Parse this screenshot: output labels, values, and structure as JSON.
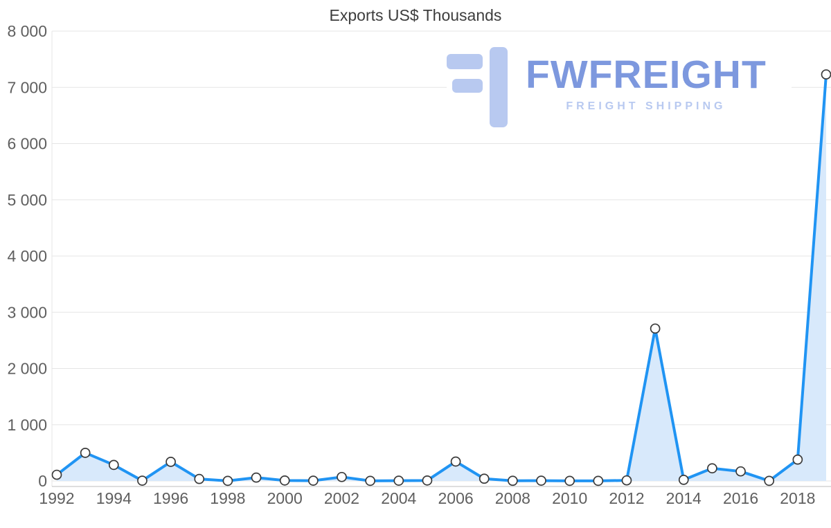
{
  "chart_data": {
    "type": "line",
    "title": "Exports US$ Thousands",
    "xlabel": "",
    "ylabel": "",
    "x": [
      1992,
      1993,
      1994,
      1995,
      1996,
      1997,
      1998,
      1999,
      2000,
      2001,
      2002,
      2003,
      2004,
      2005,
      2006,
      2007,
      2008,
      2009,
      2010,
      2011,
      2012,
      2013,
      2014,
      2015,
      2016,
      2017,
      2018,
      2019
    ],
    "values": [
      110,
      500,
      285,
      5,
      340,
      35,
      2,
      60,
      8,
      5,
      70,
      2,
      5,
      8,
      345,
      40,
      3,
      5,
      2,
      2,
      10,
      2710,
      20,
      225,
      170,
      2,
      380,
      7230
    ],
    "ylim": [
      0,
      8000
    ],
    "ytick_values": [
      0,
      1000,
      2000,
      3000,
      4000,
      5000,
      6000,
      7000,
      8000
    ],
    "ytick_labels": [
      "0",
      "1 000",
      "2 000",
      "3 000",
      "4 000",
      "5 000",
      "6 000",
      "7 000",
      "8 000"
    ],
    "xtick_values": [
      1992,
      1994,
      1996,
      1998,
      2000,
      2002,
      2004,
      2006,
      2008,
      2010,
      2012,
      2014,
      2016,
      2018
    ],
    "grid": true,
    "legend": "none",
    "marker": "circle",
    "colors": {
      "line": "#2094f3",
      "fill": "#d8e9fb",
      "marker_fill": "#ffffff",
      "marker_stroke": "#3a3a3a",
      "grid": "#e5e5e5",
      "axis": "#bdbdbd",
      "tick_text": "#5f5f5f",
      "title_text": "#3d3d3d"
    }
  },
  "watermark": {
    "brand": "FWFREIGHT",
    "subtitle": "FREIGHT SHIPPING",
    "brand_color": "#7d98de",
    "light_color": "#b8c9f0"
  }
}
